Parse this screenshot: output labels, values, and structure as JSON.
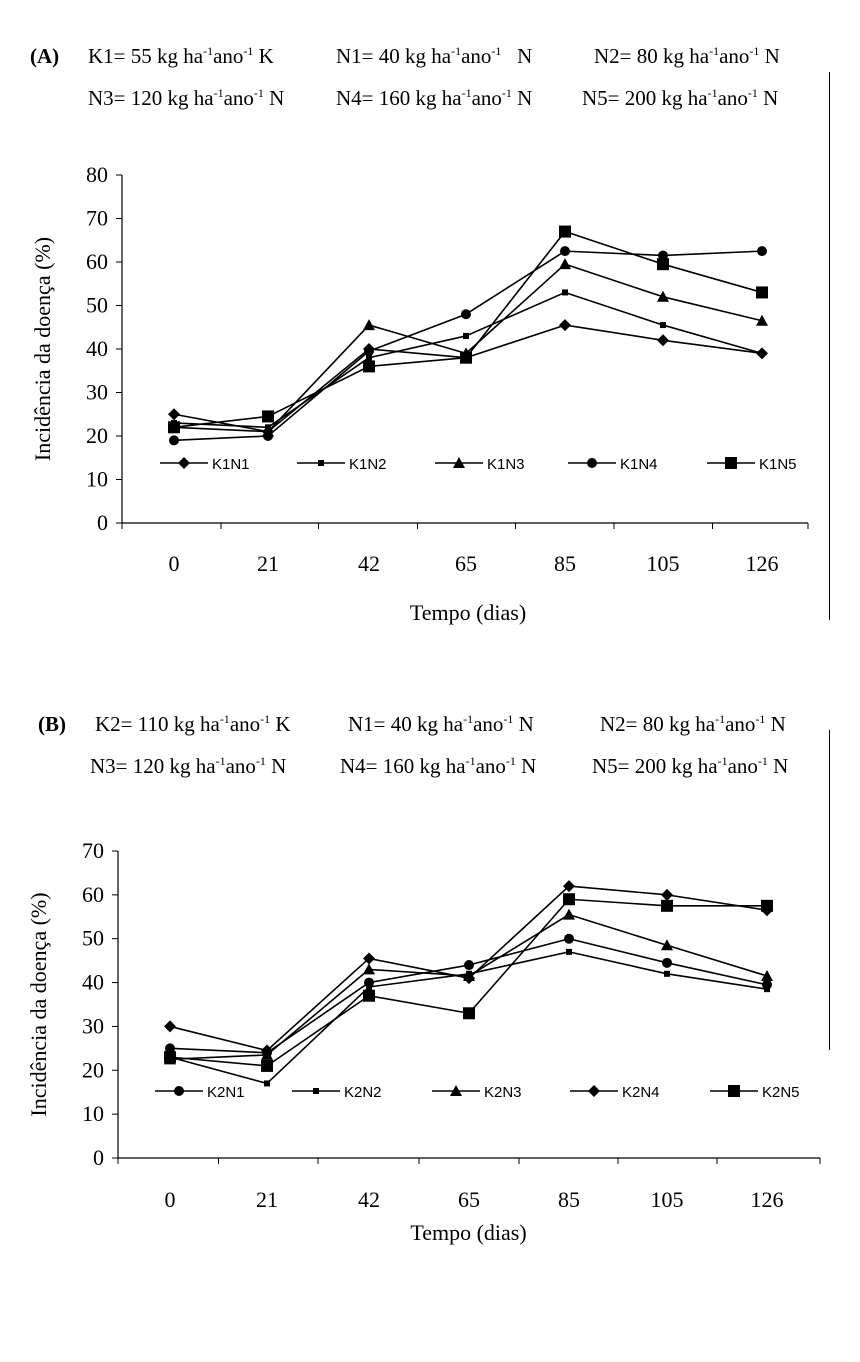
{
  "chart_data": [
    {
      "type": "line",
      "panel": "(A)",
      "header": [
        [
          {
            "b": "K1= 55 kg ha",
            "s1": "-1",
            "m": "ano",
            "s2": "-1",
            "u": " K"
          },
          {
            "b": "N1= 40 kg ha",
            "s1": "-1",
            "m": "ano",
            "s2": "-1",
            "u": "   N"
          },
          {
            "b": "N2= 80 kg ha",
            "s1": "-1",
            "m": "ano",
            "s2": "-1",
            "u": " N"
          }
        ],
        [
          {
            "b": "N3= 120 kg ha",
            "s1": "-1",
            "m": "ano",
            "s2": "-1",
            "u": " N"
          },
          {
            "b": "N4= 160 kg ha",
            "s1": "-1",
            "m": "ano",
            "s2": "-1",
            "u": " N"
          },
          {
            "b": "N5= 200 kg ha",
            "s1": "-1",
            "m": "ano",
            "s2": "-1",
            "u": " N"
          }
        ]
      ],
      "categories": [
        "0",
        "21",
        "42",
        "65",
        "85",
        "105",
        "126"
      ],
      "xlabel": "Tempo (dias)",
      "ylabel": "Incidência da doença (%)",
      "ylim": [
        0,
        80
      ],
      "yticks": [
        0,
        10,
        20,
        30,
        40,
        50,
        60,
        70,
        80
      ],
      "grid": false,
      "legend_position": "bottom-inside",
      "series": [
        {
          "name": "K1N1",
          "marker": "diamond",
          "values": [
            25,
            21,
            40,
            38,
            45.5,
            42,
            39
          ]
        },
        {
          "name": "K1N2",
          "marker": "small-square",
          "values": [
            23,
            22,
            38,
            43,
            53,
            45.5,
            39
          ]
        },
        {
          "name": "K1N3",
          "marker": "triangle",
          "values": [
            22,
            21,
            45.5,
            39,
            59.5,
            52,
            46.5
          ]
        },
        {
          "name": "K1N4",
          "marker": "circle",
          "values": [
            19,
            20,
            39.5,
            48,
            62.5,
            61.5,
            62.5
          ]
        },
        {
          "name": "K1N5",
          "marker": "square",
          "values": [
            22,
            24.5,
            36,
            38,
            67,
            59.5,
            53
          ]
        }
      ]
    },
    {
      "type": "line",
      "panel": "(B)",
      "header": [
        [
          {
            "b": "K2= 110 kg ha",
            "s1": "-1",
            "m": "ano",
            "s2": "-1",
            "u": " K"
          },
          {
            "b": "N1= 40 kg ha",
            "s1": "-1",
            "m": "ano",
            "s2": "-1",
            "u": " N"
          },
          {
            "b": "N2= 80 kg ha",
            "s1": "-1",
            "m": "ano",
            "s2": "-1",
            "u": " N"
          }
        ],
        [
          {
            "b": "N3= 120 kg ha",
            "s1": "-1",
            "m": "ano",
            "s2": "-1",
            "u": " N"
          },
          {
            "b": "N4= 160 kg ha",
            "s1": "-1",
            "m": "ano",
            "s2": "-1",
            "u": " N"
          },
          {
            "b": "N5= 200 kg ha",
            "s1": "-1",
            "m": "ano",
            "s2": "-1",
            "u": " N"
          }
        ]
      ],
      "categories": [
        "0",
        "21",
        "42",
        "65",
        "85",
        "105",
        "126"
      ],
      "xlabel": "Tempo (dias)",
      "ylabel": "Incidência da doença (%)",
      "ylim": [
        0,
        70
      ],
      "yticks": [
        0,
        10,
        20,
        30,
        40,
        50,
        60,
        70
      ],
      "grid": false,
      "legend_position": "bottom-inside",
      "series": [
        {
          "name": "K2N1",
          "marker": "circle",
          "values": [
            25,
            24,
            40,
            44,
            50,
            44.5,
            39.5
          ]
        },
        {
          "name": "K2N2",
          "marker": "small-square",
          "values": [
            23,
            17,
            39,
            42,
            47,
            42,
            38.5
          ]
        },
        {
          "name": "K2N3",
          "marker": "triangle",
          "values": [
            22.5,
            23.5,
            43,
            41.5,
            55.5,
            48.5,
            41.5
          ]
        },
        {
          "name": "K2N4",
          "marker": "diamond",
          "values": [
            30,
            24.5,
            45.5,
            41,
            62,
            60,
            56.5
          ]
        },
        {
          "name": "K2N5",
          "marker": "square",
          "values": [
            23,
            21,
            37,
            33,
            59,
            57.5,
            57.5
          ]
        }
      ]
    }
  ]
}
